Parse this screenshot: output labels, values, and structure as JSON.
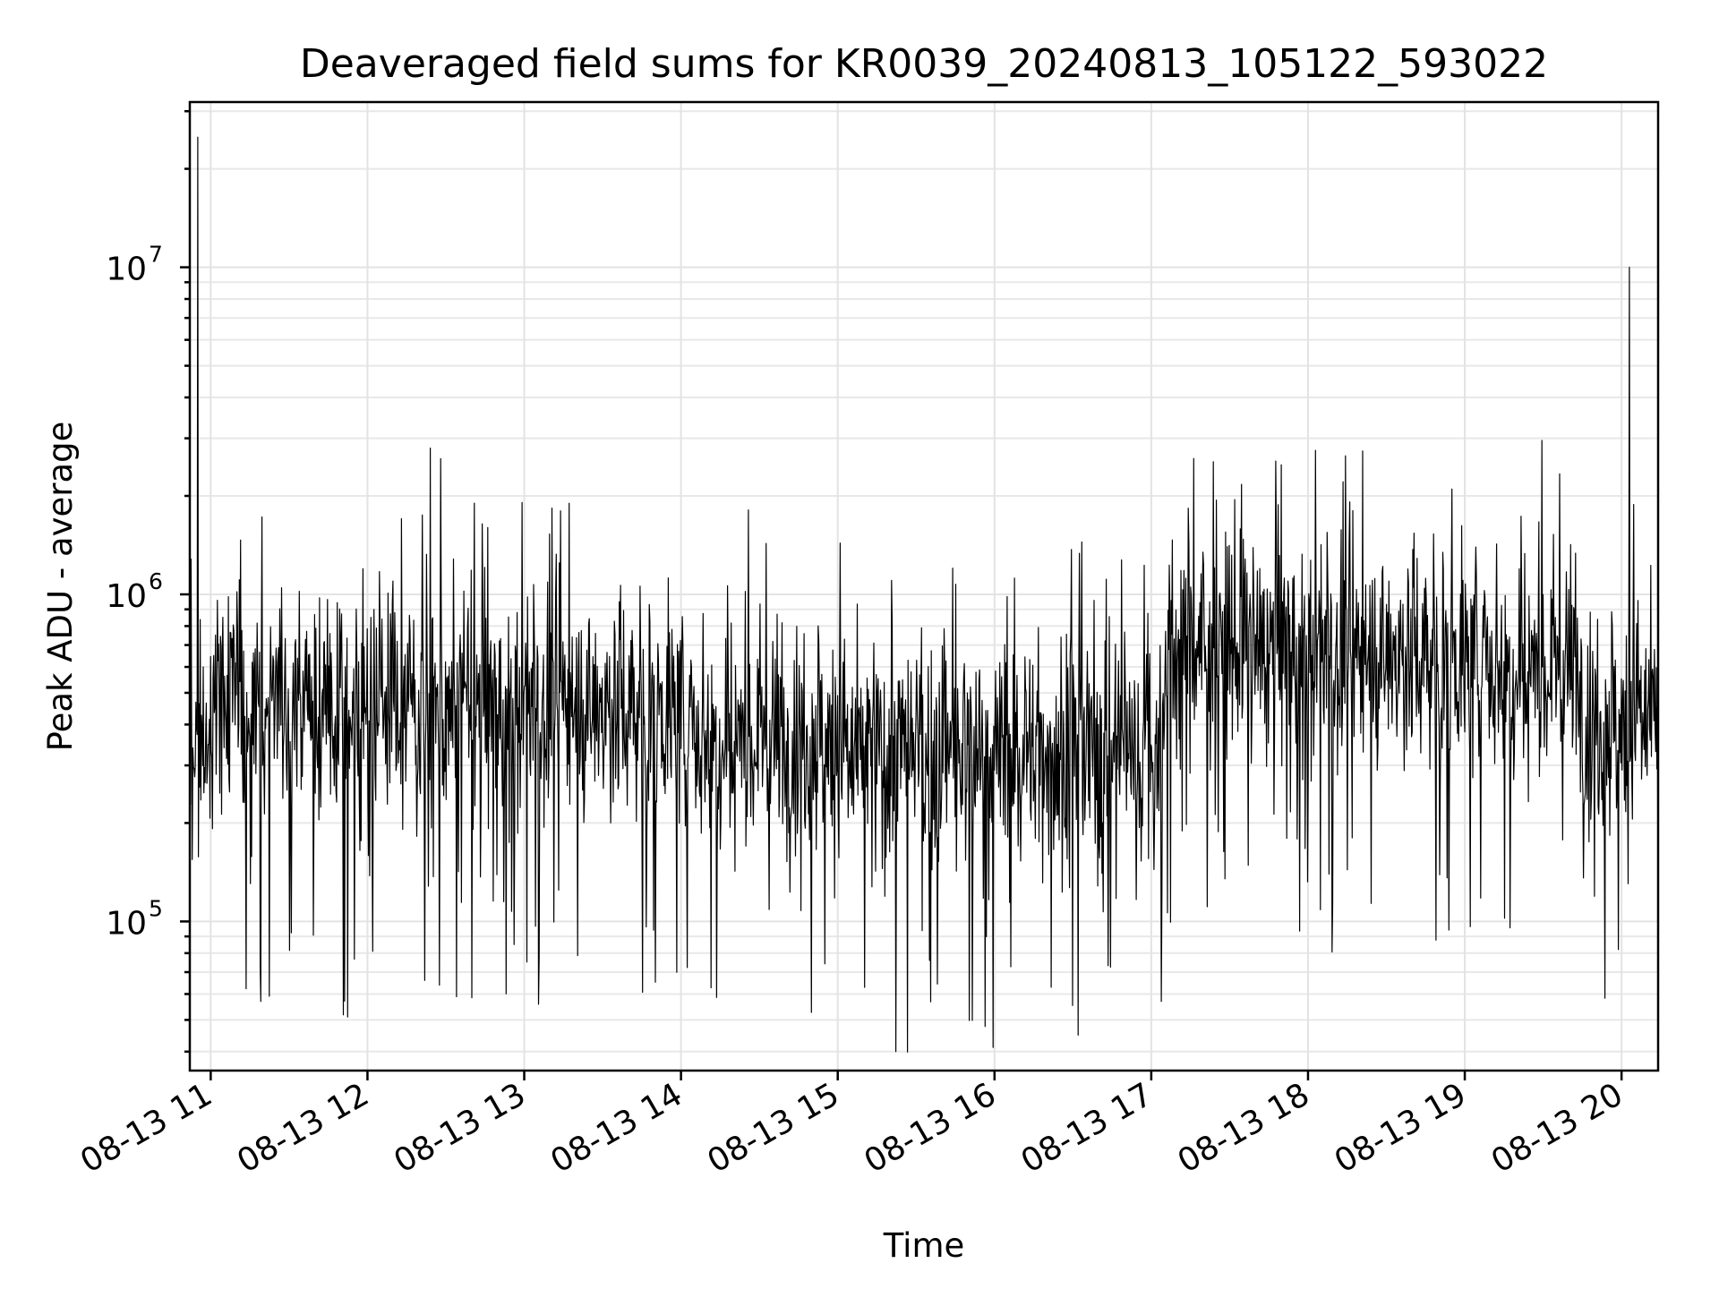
{
  "chart_data": {
    "type": "line",
    "title": "Deaveraged field sums for KR0039_20240813_105122_593022",
    "xlabel": "Time",
    "ylabel": "Peak ADU - average",
    "yscale": "log",
    "grid": "both",
    "xlim": [
      "08-13 10:52",
      "08-13 20:14"
    ],
    "ylim": [
      35000,
      32000000
    ],
    "x_ticks": [
      "08-13 11",
      "08-13 12",
      "08-13 13",
      "08-13 14",
      "08-13 15",
      "08-13 16",
      "08-13 17",
      "08-13 18",
      "08-13 19",
      "08-13 20"
    ],
    "y_ticks": [
      {
        "base": "10",
        "exp": "5",
        "value": 100000
      },
      {
        "base": "10",
        "exp": "6",
        "value": 1000000
      },
      {
        "base": "10",
        "exp": "7",
        "value": 10000000
      }
    ],
    "series_color": "#000000",
    "series": [
      {
        "values_note_free": true,
        "segments": [
          {
            "start": "08-13 10:52",
            "end": "08-13 11:00",
            "level": 350000
          },
          {
            "start": "08-13 11:00",
            "end": "08-13 12:00",
            "level": 450000
          },
          {
            "start": "08-13 12:00",
            "end": "08-13 13:00",
            "level": 450000
          },
          {
            "start": "08-13 13:00",
            "end": "08-13 14:00",
            "level": 450000
          },
          {
            "start": "08-13 14:00",
            "end": "08-13 15:00",
            "level": 380000
          },
          {
            "start": "08-13 15:00",
            "end": "08-13 16:00",
            "level": 320000
          },
          {
            "start": "08-13 16:00",
            "end": "08-13 17:05",
            "level": 330000
          },
          {
            "start": "08-13 17:05",
            "end": "08-13 18:00",
            "level": 700000
          },
          {
            "start": "08-13 18:00",
            "end": "08-13 19:00",
            "level": 650000
          },
          {
            "start": "08-13 19:00",
            "end": "08-13 19:45",
            "level": 620000
          },
          {
            "start": "08-13 19:45",
            "end": "08-13 20:14",
            "level": 420000
          }
        ],
        "peaks": [
          {
            "t": "08-13 10:55",
            "value": 25000000
          },
          {
            "t": "08-13 12:24",
            "value": 2800000
          },
          {
            "t": "08-13 12:28",
            "value": 2600000
          },
          {
            "t": "08-13 12:41",
            "value": 1900000
          },
          {
            "t": "08-13 13:14",
            "value": 1800000
          },
          {
            "t": "08-13 18:55",
            "value": 2100000
          },
          {
            "t": "08-13 20:03",
            "value": 10000000
          }
        ]
      }
    ]
  }
}
